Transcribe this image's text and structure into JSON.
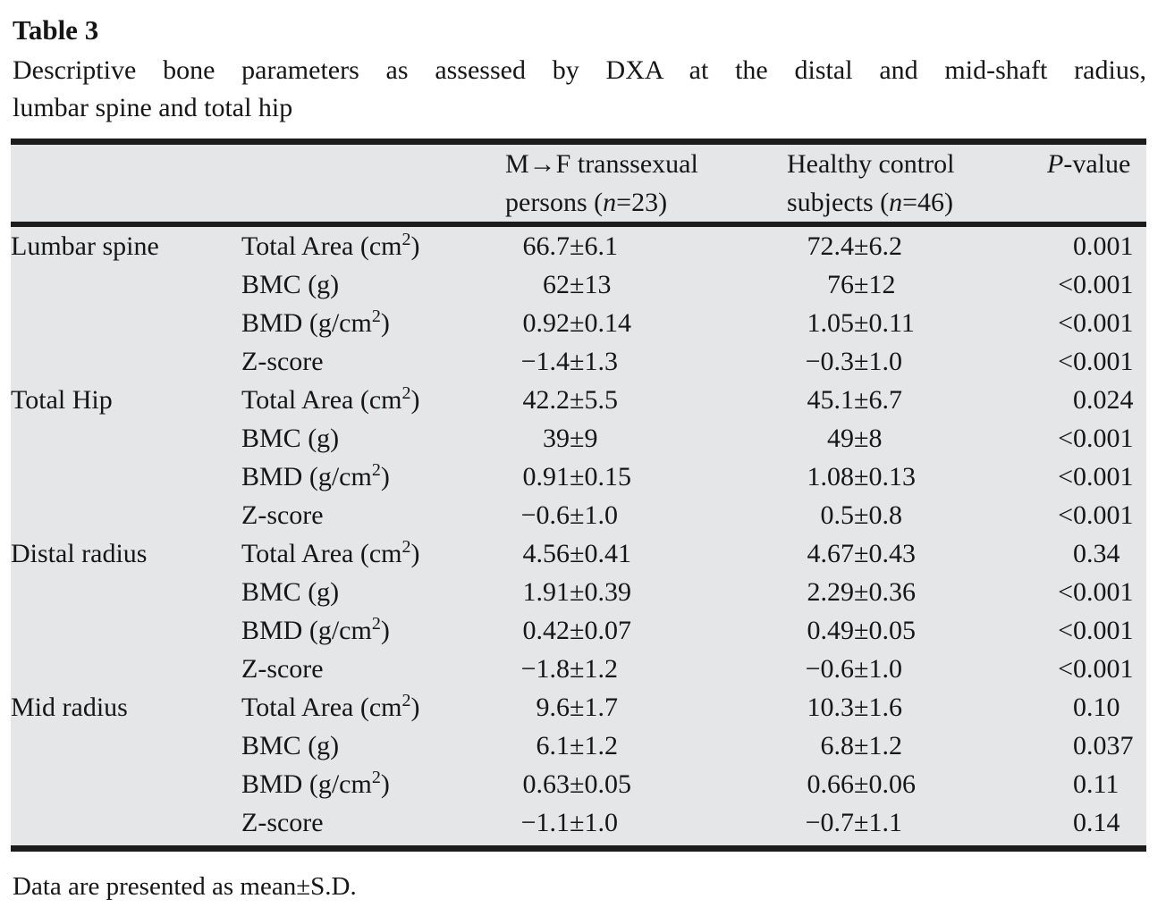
{
  "page": {
    "title": "Table 3",
    "caption_line1": "Descriptive bone parameters as assessed by DXA at the distal and mid-shaft radius,",
    "caption_line2": "lumbar spine and total hip",
    "footnote": "Data are presented as mean±S.D."
  },
  "header": {
    "col3_line1": "M→F transsexual",
    "col3_line2_pre": "persons (",
    "col3_n": "n",
    "col3_line2_post": "=23)",
    "col4_line1": "Healthy control",
    "col4_line2_pre": "subjects (",
    "col4_n": "n",
    "col4_line2_post": "=46)",
    "col5_italic": "P",
    "col5_rest": "-value"
  },
  "style": {
    "table_background": "#e5e6e7",
    "rule_color": "#1c1c1c",
    "text_color": "#161616"
  },
  "table": {
    "rows": [
      {
        "group": "Lumbar spine",
        "param": "Total Area (cm",
        "sup": "2",
        "after": ")",
        "mf": {
          "pre": "66.7",
          "post": "±6.1"
        },
        "hc": {
          "pre": "72.4",
          "post": "±6.2"
        },
        "p": {
          "int": "0",
          "frac": ".001"
        }
      },
      {
        "group": "",
        "param": "BMC (g)",
        "sup": "",
        "after": "",
        "mf": {
          "pre": "62",
          "post": "±13"
        },
        "hc": {
          "pre": "76",
          "post": "±12"
        },
        "p": {
          "int": "<0",
          "frac": ".001"
        }
      },
      {
        "group": "",
        "param": "BMD (g/cm",
        "sup": "2",
        "after": ")",
        "mf": {
          "pre": "0.92",
          "post": "±0.14"
        },
        "hc": {
          "pre": "1.05",
          "post": "±0.11"
        },
        "p": {
          "int": "<0",
          "frac": ".001"
        }
      },
      {
        "group": "",
        "param": "Z-score",
        "sup": "",
        "after": "",
        "mf": {
          "pre": "−1.4",
          "post": "±1.3"
        },
        "hc": {
          "pre": "−0.3",
          "post": "±1.0"
        },
        "p": {
          "int": "<0",
          "frac": ".001"
        }
      },
      {
        "group": "Total Hip",
        "param": "Total Area (cm",
        "sup": "2",
        "after": ")",
        "mf": {
          "pre": "42.2",
          "post": "±5.5"
        },
        "hc": {
          "pre": "45.1",
          "post": "±6.7"
        },
        "p": {
          "int": "0",
          "frac": ".024"
        }
      },
      {
        "group": "",
        "param": "BMC (g)",
        "sup": "",
        "after": "",
        "mf": {
          "pre": "39",
          "post": "±9"
        },
        "hc": {
          "pre": "49",
          "post": "±8"
        },
        "p": {
          "int": "<0",
          "frac": ".001"
        }
      },
      {
        "group": "",
        "param": "BMD (g/cm",
        "sup": "2",
        "after": ")",
        "mf": {
          "pre": "0.91",
          "post": "±0.15"
        },
        "hc": {
          "pre": "1.08",
          "post": "±0.13"
        },
        "p": {
          "int": "<0",
          "frac": ".001"
        }
      },
      {
        "group": "",
        "param": "Z-score",
        "sup": "",
        "after": "",
        "mf": {
          "pre": "−0.6",
          "post": "±1.0"
        },
        "hc": {
          "pre": "0.5",
          "post": "±0.8"
        },
        "p": {
          "int": "<0",
          "frac": ".001"
        }
      },
      {
        "group": "Distal radius",
        "param": "Total Area (cm",
        "sup": "2",
        "after": ")",
        "mf": {
          "pre": "4.56",
          "post": "±0.41"
        },
        "hc": {
          "pre": "4.67",
          "post": "±0.43"
        },
        "p": {
          "int": "0",
          "frac": ".34"
        }
      },
      {
        "group": "",
        "param": "BMC (g)",
        "sup": "",
        "after": "",
        "mf": {
          "pre": "1.91",
          "post": "±0.39"
        },
        "hc": {
          "pre": "2.29",
          "post": "±0.36"
        },
        "p": {
          "int": "<0",
          "frac": ".001"
        }
      },
      {
        "group": "",
        "param": "BMD (g/cm",
        "sup": "2",
        "after": ")",
        "mf": {
          "pre": "0.42",
          "post": "±0.07"
        },
        "hc": {
          "pre": "0.49",
          "post": "±0.05"
        },
        "p": {
          "int": "<0",
          "frac": ".001"
        }
      },
      {
        "group": "",
        "param": "Z-score",
        "sup": "",
        "after": "",
        "mf": {
          "pre": "−1.8",
          "post": "±1.2"
        },
        "hc": {
          "pre": "−0.6",
          "post": "±1.0"
        },
        "p": {
          "int": "<0",
          "frac": ".001"
        }
      },
      {
        "group": "Mid radius",
        "param": "Total Area (cm",
        "sup": "2",
        "after": ")",
        "mf": {
          "pre": "9.6",
          "post": "±1.7"
        },
        "hc": {
          "pre": "10.3",
          "post": "±1.6"
        },
        "p": {
          "int": "0",
          "frac": ".10"
        }
      },
      {
        "group": "",
        "param": "BMC (g)",
        "sup": "",
        "after": "",
        "mf": {
          "pre": "6.1",
          "post": "±1.2"
        },
        "hc": {
          "pre": "6.8",
          "post": "±1.2"
        },
        "p": {
          "int": "0",
          "frac": ".037"
        }
      },
      {
        "group": "",
        "param": "BMD (g/cm",
        "sup": "2",
        "after": ")",
        "mf": {
          "pre": "0.63",
          "post": "±0.05"
        },
        "hc": {
          "pre": "0.66",
          "post": "±0.06"
        },
        "p": {
          "int": "0",
          "frac": ".11"
        }
      },
      {
        "group": "",
        "param": "Z-score",
        "sup": "",
        "after": "",
        "mf": {
          "pre": "−1.1",
          "post": "±1.0"
        },
        "hc": {
          "pre": "−0.7",
          "post": "±1.1"
        },
        "p": {
          "int": "0",
          "frac": ".14"
        }
      }
    ]
  }
}
